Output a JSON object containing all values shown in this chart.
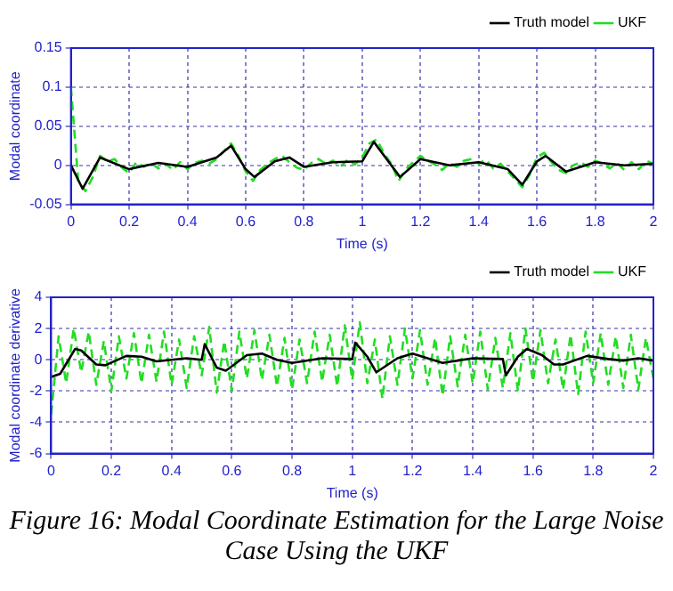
{
  "chart_data": [
    {
      "type": "line",
      "xlabel": "Time (s)",
      "ylabel": "Modal coordinate",
      "xlim": [
        0,
        2
      ],
      "xticks": [
        0,
        0.2,
        0.4,
        0.6,
        0.8,
        1,
        1.2,
        1.4,
        1.6,
        1.8,
        2
      ],
      "ylim": [
        -0.05,
        0.15
      ],
      "yticks": [
        -0.05,
        0,
        0.05,
        0.1,
        0.15
      ],
      "grid": true,
      "legend": "top right",
      "marker": "none",
      "series": [
        {
          "name": "Truth model",
          "color": "#000000",
          "line_style": "solid",
          "x": [
            0,
            0.04,
            0.1,
            0.2,
            0.3,
            0.4,
            0.5,
            0.55,
            0.6,
            0.63,
            0.7,
            0.75,
            0.8,
            0.9,
            1.0,
            1.04,
            1.1,
            1.13,
            1.2,
            1.3,
            1.4,
            1.5,
            1.55,
            1.6,
            1.63,
            1.7,
            1.8,
            1.9,
            2.0
          ],
          "values": [
            0,
            -0.03,
            0.01,
            -0.005,
            0.003,
            -0.002,
            0.01,
            0.025,
            -0.005,
            -0.015,
            0.005,
            0.01,
            -0.002,
            0.004,
            0.005,
            0.03,
            0.0,
            -0.015,
            0.008,
            0.0,
            0.004,
            -0.005,
            -0.025,
            0.005,
            0.012,
            -0.008,
            0.004,
            0.0,
            0.002
          ]
        },
        {
          "name": "UKF",
          "color": "#22dd22",
          "line_style": "dashed",
          "x": [
            0,
            0.025,
            0.05,
            0.075,
            0.1,
            0.125,
            0.15,
            0.175,
            0.2,
            0.225,
            0.25,
            0.275,
            0.3,
            0.325,
            0.35,
            0.375,
            0.4,
            0.425,
            0.45,
            0.475,
            0.5,
            0.525,
            0.55,
            0.575,
            0.6,
            0.625,
            0.65,
            0.675,
            0.7,
            0.725,
            0.75,
            0.775,
            0.8,
            0.825,
            0.85,
            0.875,
            0.9,
            0.925,
            0.95,
            0.975,
            1.0,
            1.025,
            1.05,
            1.075,
            1.1,
            1.125,
            1.15,
            1.175,
            1.2,
            1.225,
            1.25,
            1.275,
            1.3,
            1.325,
            1.35,
            1.375,
            1.4,
            1.425,
            1.45,
            1.475,
            1.5,
            1.525,
            1.55,
            1.575,
            1.6,
            1.625,
            1.65,
            1.675,
            1.7,
            1.725,
            1.75,
            1.775,
            1.8,
            1.825,
            1.85,
            1.875,
            1.9,
            1.925,
            1.95,
            1.975,
            2.0
          ],
          "values": [
            0.1,
            -0.02,
            -0.033,
            -0.015,
            0.012,
            0.005,
            0.008,
            -0.003,
            -0.01,
            0.004,
            -0.002,
            0.003,
            -0.004,
            0.002,
            -0.006,
            0.004,
            -0.005,
            0.003,
            0.006,
            0.002,
            0.008,
            0.018,
            0.028,
            0.012,
            -0.008,
            -0.02,
            -0.006,
            0.002,
            0.008,
            0.012,
            0.004,
            -0.003,
            -0.006,
            0.003,
            0.008,
            0.002,
            0.006,
            -0.002,
            0.007,
            0.001,
            0.01,
            0.028,
            0.033,
            0.015,
            0.002,
            -0.02,
            -0.005,
            0.004,
            0.012,
            0.006,
            0.001,
            -0.006,
            0.003,
            -0.002,
            0.006,
            0.008,
            0.002,
            0.007,
            -0.004,
            0.002,
            -0.008,
            -0.018,
            -0.028,
            -0.012,
            0.01,
            0.016,
            0.004,
            -0.006,
            -0.01,
            0.0,
            0.004,
            -0.002,
            0.006,
            0.002,
            -0.004,
            0.003,
            -0.006,
            0.004,
            -0.005,
            0.006,
            0.002
          ]
        }
      ]
    },
    {
      "type": "line",
      "xlabel": "Time (s)",
      "ylabel": "Modal coordinate derivative",
      "xlim": [
        0,
        2
      ],
      "xticks": [
        0,
        0.2,
        0.4,
        0.6,
        0.8,
        1,
        1.2,
        1.4,
        1.6,
        1.8,
        2
      ],
      "ylim": [
        -6,
        4
      ],
      "yticks": [
        -6,
        -4,
        -2,
        0,
        2,
        4
      ],
      "grid": true,
      "legend": "top right",
      "marker": "none",
      "annotations": [
        "Figure 16: Modal Coordinate Estimation for the Large Noise Case Using the UKF"
      ],
      "series": [
        {
          "name": "Truth model",
          "color": "#000000",
          "line_style": "solid",
          "x": [
            0,
            0.03,
            0.08,
            0.1,
            0.15,
            0.18,
            0.25,
            0.3,
            0.35,
            0.45,
            0.5,
            0.51,
            0.55,
            0.58,
            0.65,
            0.7,
            0.75,
            0.8,
            0.9,
            1.0,
            1.01,
            1.05,
            1.08,
            1.15,
            1.2,
            1.25,
            1.3,
            1.4,
            1.5,
            1.51,
            1.55,
            1.58,
            1.63,
            1.67,
            1.7,
            1.78,
            1.85,
            1.9,
            1.95,
            2.0
          ],
          "values": [
            -1.1,
            -0.9,
            0.7,
            0.6,
            -0.3,
            -0.35,
            0.25,
            0.2,
            -0.1,
            0.1,
            0.0,
            1.0,
            -0.5,
            -0.7,
            0.3,
            0.4,
            0,
            -0.2,
            0.1,
            0.05,
            1.1,
            0.2,
            -0.8,
            0.1,
            0.4,
            0.1,
            -0.2,
            0.1,
            0.05,
            -1.0,
            0.2,
            0.7,
            0.3,
            -0.3,
            -0.3,
            0.25,
            0.05,
            -0.05,
            0.1,
            -0.05
          ]
        },
        {
          "name": "UKF",
          "color": "#22dd22",
          "line_style": "dashed",
          "x": [
            0,
            0.025,
            0.05,
            0.075,
            0.1,
            0.125,
            0.15,
            0.175,
            0.2,
            0.225,
            0.25,
            0.275,
            0.3,
            0.325,
            0.35,
            0.375,
            0.4,
            0.425,
            0.45,
            0.475,
            0.5,
            0.525,
            0.55,
            0.575,
            0.6,
            0.625,
            0.65,
            0.675,
            0.7,
            0.725,
            0.75,
            0.775,
            0.8,
            0.825,
            0.85,
            0.875,
            0.9,
            0.925,
            0.95,
            0.975,
            1.0,
            1.025,
            1.05,
            1.075,
            1.1,
            1.125,
            1.15,
            1.175,
            1.2,
            1.225,
            1.25,
            1.275,
            1.3,
            1.325,
            1.35,
            1.375,
            1.4,
            1.425,
            1.45,
            1.475,
            1.5,
            1.525,
            1.55,
            1.575,
            1.6,
            1.625,
            1.65,
            1.675,
            1.7,
            1.725,
            1.75,
            1.775,
            1.8,
            1.825,
            1.85,
            1.875,
            1.9,
            1.925,
            1.95,
            1.975,
            2.0
          ],
          "values": [
            -3.5,
            1.5,
            -1.5,
            2.0,
            -0.8,
            1.8,
            -1.6,
            1.2,
            -2.0,
            1.5,
            -1.2,
            1.7,
            -1.5,
            1.6,
            -1.4,
            1.8,
            -1.6,
            1.3,
            -1.8,
            1.5,
            -1.0,
            2.1,
            -2.1,
            1.2,
            -2.0,
            1.8,
            -1.2,
            1.9,
            -1.3,
            1.6,
            -1.7,
            1.4,
            -1.9,
            1.3,
            -1.5,
            1.8,
            -1.4,
            1.6,
            -1.7,
            2.2,
            -1.3,
            2.4,
            -1.5,
            1.3,
            -2.5,
            1.5,
            -1.6,
            2.0,
            -1.2,
            1.9,
            -1.6,
            1.4,
            -2.3,
            1.5,
            -1.7,
            1.6,
            -1.5,
            1.8,
            -1.9,
            1.4,
            -1.8,
            1.7,
            -2.0,
            2.0,
            -1.4,
            1.9,
            -1.5,
            1.3,
            -1.9,
            1.6,
            -2.2,
            1.8,
            -1.5,
            1.7,
            -1.6,
            1.5,
            -1.8,
            1.6,
            -1.9,
            1.4,
            -1.2
          ]
        }
      ]
    }
  ]
}
